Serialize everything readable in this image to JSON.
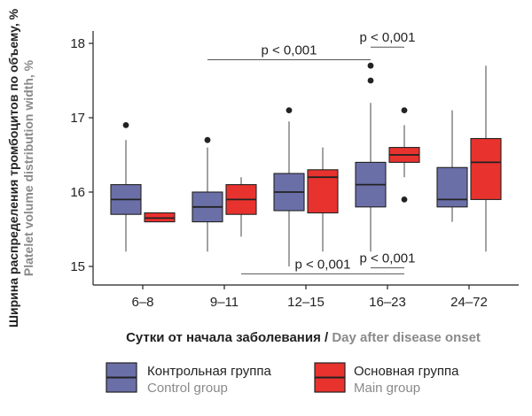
{
  "chart_data": {
    "type": "boxplot",
    "y_axis": {
      "label_ru": "Ширина распределения тромбоцитов по объему, %",
      "label_en": "Platelet volume distribution width, %",
      "ylim": [
        14.85,
        18.3
      ],
      "ticks": [
        "15",
        "16",
        "17",
        "18"
      ]
    },
    "x_axis": {
      "label_ru": "Сутки от начала заболевания",
      "separator": " / ",
      "label_en": "Day after disease onset",
      "categories": [
        "6–8",
        "9–11",
        "12–15",
        "16–23",
        "24–72"
      ]
    },
    "series": [
      {
        "name_ru": "Контрольная группа",
        "name_en": "Control group",
        "color": "#6b6fa8",
        "boxes": [
          {
            "category": "6–8",
            "low": 15.2,
            "q1": 15.7,
            "median": 15.9,
            "q3": 16.1,
            "high": 16.7,
            "outliers": [
              16.9
            ]
          },
          {
            "category": "9–11",
            "low": 15.2,
            "q1": 15.6,
            "median": 15.8,
            "q3": 16.0,
            "high": 16.6,
            "outliers": [
              16.7
            ]
          },
          {
            "category": "12–15",
            "low": 15.0,
            "q1": 15.75,
            "median": 16.0,
            "q3": 16.25,
            "high": 16.95,
            "outliers": [
              17.1
            ]
          },
          {
            "category": "16–23",
            "low": 15.2,
            "q1": 15.8,
            "median": 16.1,
            "q3": 16.4,
            "high": 17.2,
            "outliers": [
              17.5,
              17.7
            ]
          },
          {
            "category": "24–72",
            "low": 15.6,
            "q1": 15.8,
            "median": 15.9,
            "q3": 16.33,
            "high": 17.1,
            "outliers": []
          }
        ]
      },
      {
        "name_ru": "Основная группа",
        "name_en": "Main group",
        "color": "#e8322e",
        "boxes": [
          {
            "category": "6–8",
            "low": 15.6,
            "q1": 15.6,
            "median": 15.65,
            "q3": 15.72,
            "high": 15.72,
            "outliers": []
          },
          {
            "category": "9–11",
            "low": 15.4,
            "q1": 15.7,
            "median": 15.9,
            "q3": 16.1,
            "high": 16.2,
            "outliers": []
          },
          {
            "category": "12–15",
            "low": 15.2,
            "q1": 15.72,
            "median": 16.2,
            "q3": 16.3,
            "high": 16.6,
            "outliers": []
          },
          {
            "category": "16–23",
            "low": 16.2,
            "q1": 16.4,
            "median": 16.5,
            "q3": 16.6,
            "high": 16.9,
            "outliers": [
              15.9,
              17.1
            ]
          },
          {
            "category": "24–72",
            "low": 15.2,
            "q1": 15.9,
            "median": 16.4,
            "q3": 16.72,
            "high": 17.7,
            "outliers": []
          }
        ]
      }
    ],
    "annotations": [
      {
        "text": "p < 0,001",
        "from": "9–11",
        "to": "16–23",
        "series": "Контрольная группа",
        "y": 17.78,
        "label_side": "above"
      },
      {
        "text": "p < 0,001",
        "from": "16–23",
        "to": "16–23",
        "series": "both",
        "y": 17.95,
        "label_side": "above"
      },
      {
        "text": "p < 0,001",
        "from": "16–23",
        "to": "16–23",
        "series": "both",
        "y": 14.98,
        "label_side": "above"
      },
      {
        "text": "p < 0,001",
        "from": "9–11",
        "to": "16–23",
        "series": "Основная группа",
        "y": 14.9,
        "label_side": "above"
      }
    ]
  }
}
